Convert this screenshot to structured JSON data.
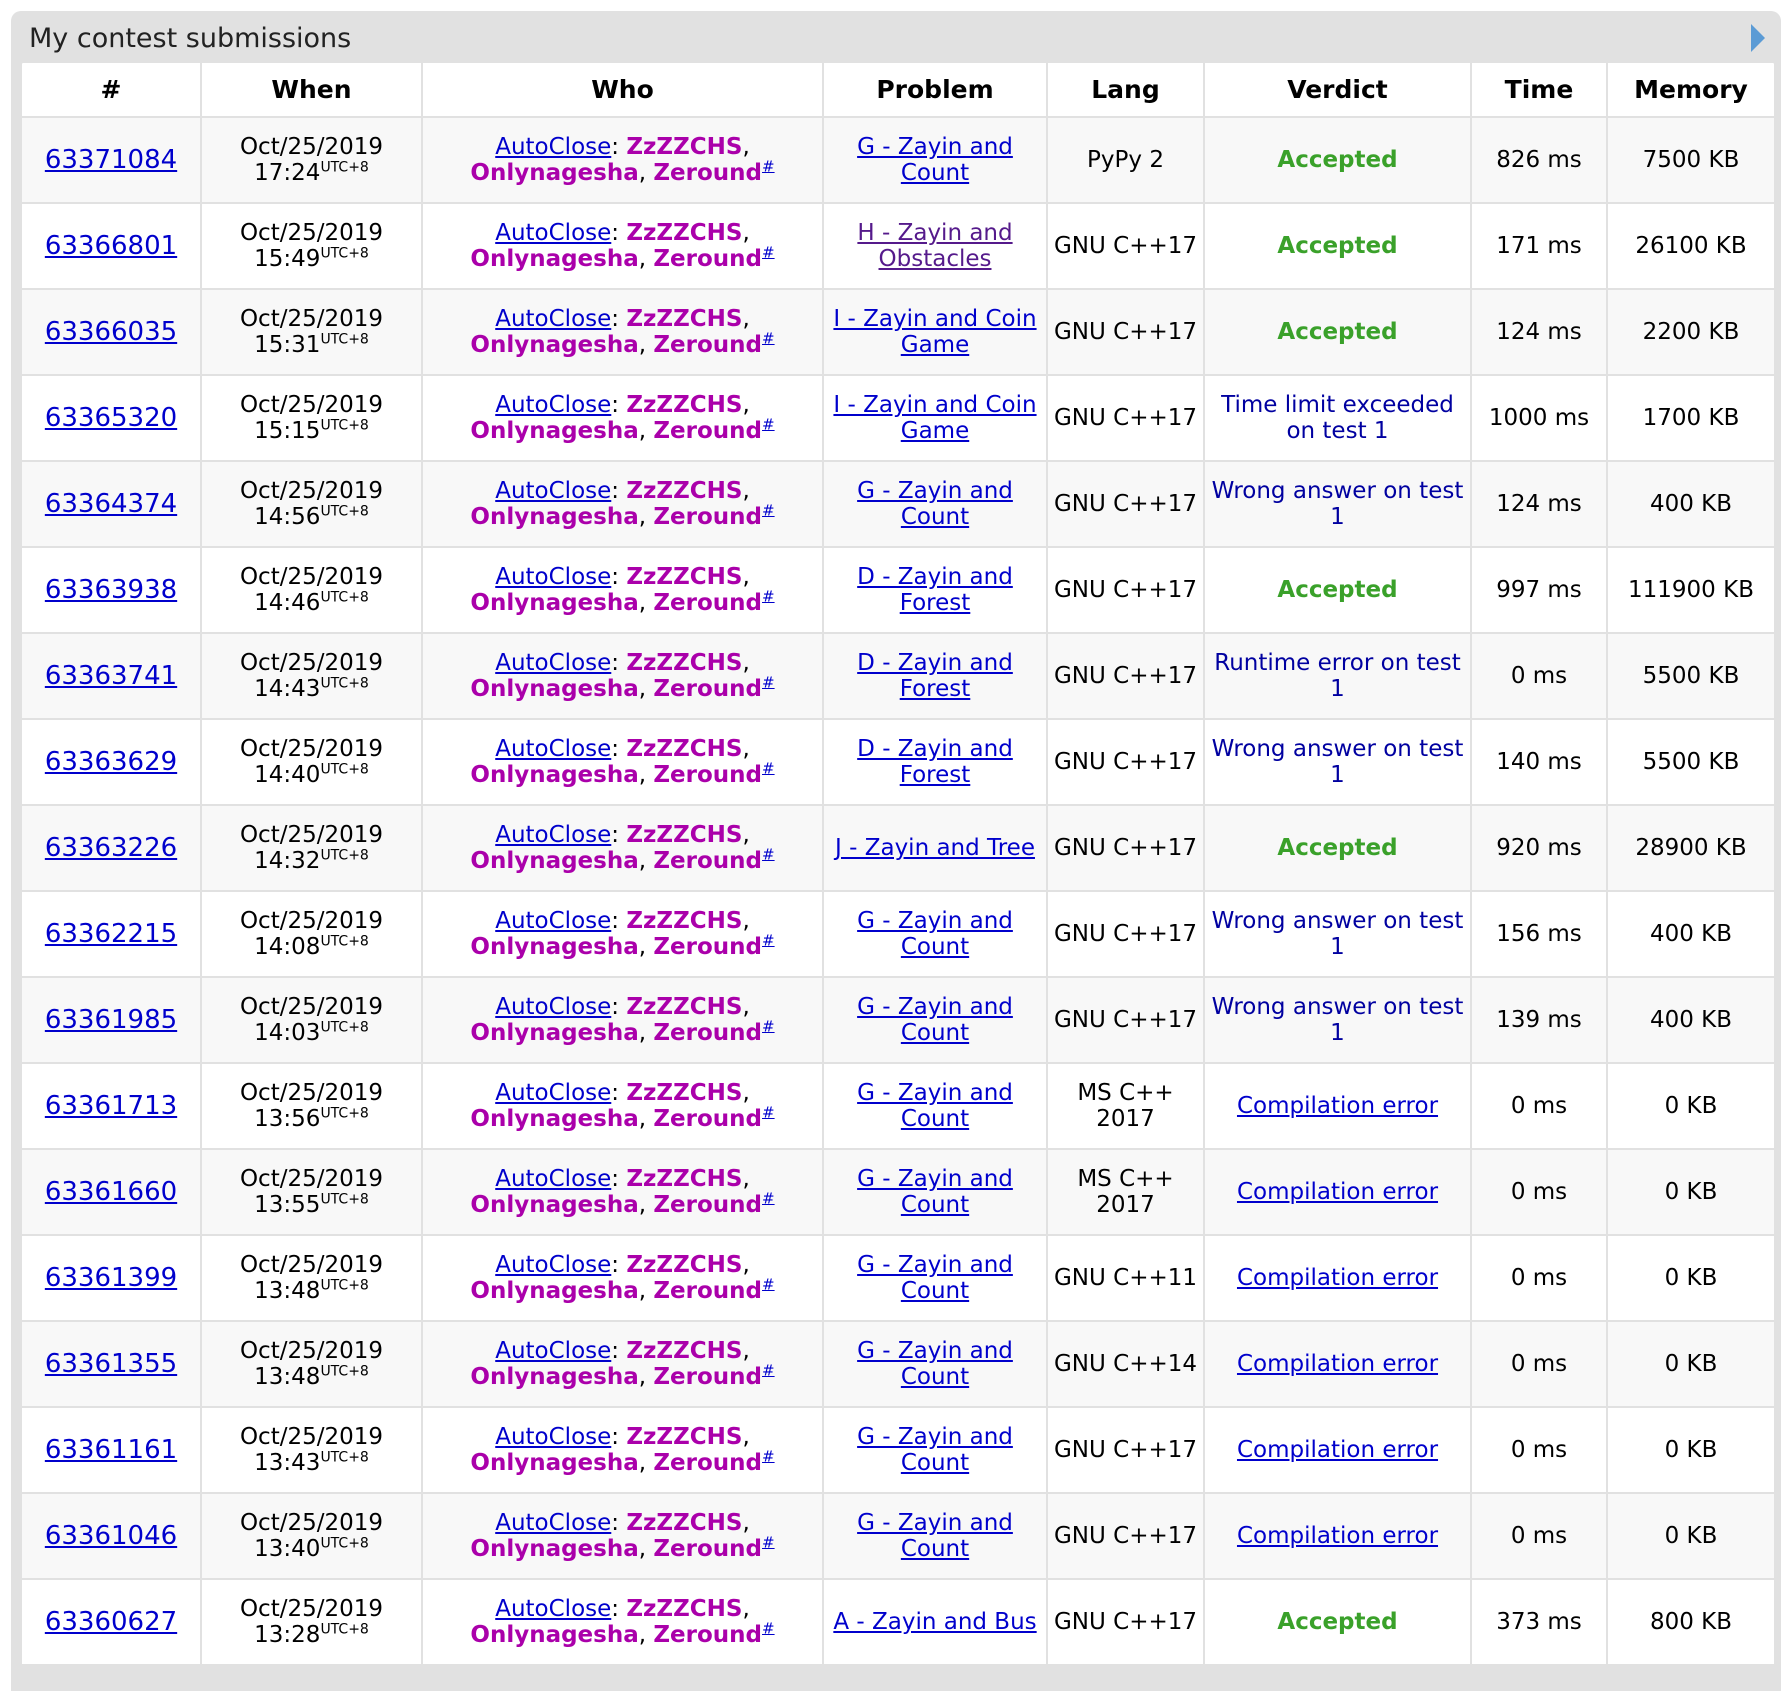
{
  "panel": {
    "title": "My contest submissions"
  },
  "columns": [
    "#",
    "When",
    "Who",
    "Problem",
    "Lang",
    "Verdict",
    "Time",
    "Memory"
  ],
  "who": {
    "team": "AutoClose",
    "members": [
      "ZzZZCHS",
      "Onlynagesha",
      "Zeround"
    ],
    "hash": "#",
    "timezone": "UTC+8"
  },
  "colors": {
    "link": "#0000cc",
    "visited": "#551a8b",
    "user": "#aa00aa",
    "accepted": "#3aa12a",
    "rejected": "#0000a0"
  },
  "rows": [
    {
      "id": "63371084",
      "date": "Oct/25/2019",
      "time": "17:24",
      "problem": "G - Zayin and Count",
      "visited": false,
      "lang": "PyPy 2",
      "verdict": "Accepted",
      "vtype": "acc",
      "runtime": "826 ms",
      "memory": "7500 KB"
    },
    {
      "id": "63366801",
      "date": "Oct/25/2019",
      "time": "15:49",
      "problem": "H - Zayin and Obstacles",
      "visited": true,
      "lang": "GNU C++17",
      "verdict": "Accepted",
      "vtype": "acc",
      "runtime": "171 ms",
      "memory": "26100 KB"
    },
    {
      "id": "63366035",
      "date": "Oct/25/2019",
      "time": "15:31",
      "problem": "I - Zayin and Coin Game",
      "visited": false,
      "lang": "GNU C++17",
      "verdict": "Accepted",
      "vtype": "acc",
      "runtime": "124 ms",
      "memory": "2200 KB"
    },
    {
      "id": "63365320",
      "date": "Oct/25/2019",
      "time": "15:15",
      "problem": "I - Zayin and Coin Game",
      "visited": false,
      "lang": "GNU C++17",
      "verdict": "Time limit exceeded on test 1",
      "vtype": "rej",
      "runtime": "1000 ms",
      "memory": "1700 KB"
    },
    {
      "id": "63364374",
      "date": "Oct/25/2019",
      "time": "14:56",
      "problem": "G - Zayin and Count",
      "visited": false,
      "lang": "GNU C++17",
      "verdict": "Wrong answer on test 1",
      "vtype": "rej",
      "runtime": "124 ms",
      "memory": "400 KB"
    },
    {
      "id": "63363938",
      "date": "Oct/25/2019",
      "time": "14:46",
      "problem": "D - Zayin and Forest",
      "visited": false,
      "lang": "GNU C++17",
      "verdict": "Accepted",
      "vtype": "acc",
      "runtime": "997 ms",
      "memory": "111900 KB"
    },
    {
      "id": "63363741",
      "date": "Oct/25/2019",
      "time": "14:43",
      "problem": "D - Zayin and Forest",
      "visited": false,
      "lang": "GNU C++17",
      "verdict": "Runtime error on test 1",
      "vtype": "rej",
      "runtime": "0 ms",
      "memory": "5500 KB"
    },
    {
      "id": "63363629",
      "date": "Oct/25/2019",
      "time": "14:40",
      "problem": "D - Zayin and Forest",
      "visited": false,
      "lang": "GNU C++17",
      "verdict": "Wrong answer on test 1",
      "vtype": "rej",
      "runtime": "140 ms",
      "memory": "5500 KB"
    },
    {
      "id": "63363226",
      "date": "Oct/25/2019",
      "time": "14:32",
      "problem": "J - Zayin and Tree",
      "visited": false,
      "lang": "GNU C++17",
      "verdict": "Accepted",
      "vtype": "acc",
      "runtime": "920 ms",
      "memory": "28900 KB"
    },
    {
      "id": "63362215",
      "date": "Oct/25/2019",
      "time": "14:08",
      "problem": "G - Zayin and Count",
      "visited": false,
      "lang": "GNU C++17",
      "verdict": "Wrong answer on test 1",
      "vtype": "rej",
      "runtime": "156 ms",
      "memory": "400 KB"
    },
    {
      "id": "63361985",
      "date": "Oct/25/2019",
      "time": "14:03",
      "problem": "G - Zayin and Count",
      "visited": false,
      "lang": "GNU C++17",
      "verdict": "Wrong answer on test 1",
      "vtype": "rej",
      "runtime": "139 ms",
      "memory": "400 KB"
    },
    {
      "id": "63361713",
      "date": "Oct/25/2019",
      "time": "13:56",
      "problem": "G - Zayin and Count",
      "visited": false,
      "lang": "MS C++ 2017",
      "verdict": "Compilation error",
      "vtype": "ce",
      "runtime": "0 ms",
      "memory": "0 KB"
    },
    {
      "id": "63361660",
      "date": "Oct/25/2019",
      "time": "13:55",
      "problem": "G - Zayin and Count",
      "visited": false,
      "lang": "MS C++ 2017",
      "verdict": "Compilation error",
      "vtype": "ce",
      "runtime": "0 ms",
      "memory": "0 KB"
    },
    {
      "id": "63361399",
      "date": "Oct/25/2019",
      "time": "13:48",
      "problem": "G - Zayin and Count",
      "visited": false,
      "lang": "GNU C++11",
      "verdict": "Compilation error",
      "vtype": "ce",
      "runtime": "0 ms",
      "memory": "0 KB"
    },
    {
      "id": "63361355",
      "date": "Oct/25/2019",
      "time": "13:48",
      "problem": "G - Zayin and Count",
      "visited": false,
      "lang": "GNU C++14",
      "verdict": "Compilation error",
      "vtype": "ce",
      "runtime": "0 ms",
      "memory": "0 KB"
    },
    {
      "id": "63361161",
      "date": "Oct/25/2019",
      "time": "13:43",
      "problem": "G - Zayin and Count",
      "visited": false,
      "lang": "GNU C++17",
      "verdict": "Compilation error",
      "vtype": "ce",
      "runtime": "0 ms",
      "memory": "0 KB"
    },
    {
      "id": "63361046",
      "date": "Oct/25/2019",
      "time": "13:40",
      "problem": "G - Zayin and Count",
      "visited": false,
      "lang": "GNU C++17",
      "verdict": "Compilation error",
      "vtype": "ce",
      "runtime": "0 ms",
      "memory": "0 KB"
    },
    {
      "id": "63360627",
      "date": "Oct/25/2019",
      "time": "13:28",
      "problem": "A - Zayin and Bus",
      "visited": false,
      "lang": "GNU C++17",
      "verdict": "Accepted",
      "vtype": "acc",
      "runtime": "373 ms",
      "memory": "800 KB"
    }
  ]
}
